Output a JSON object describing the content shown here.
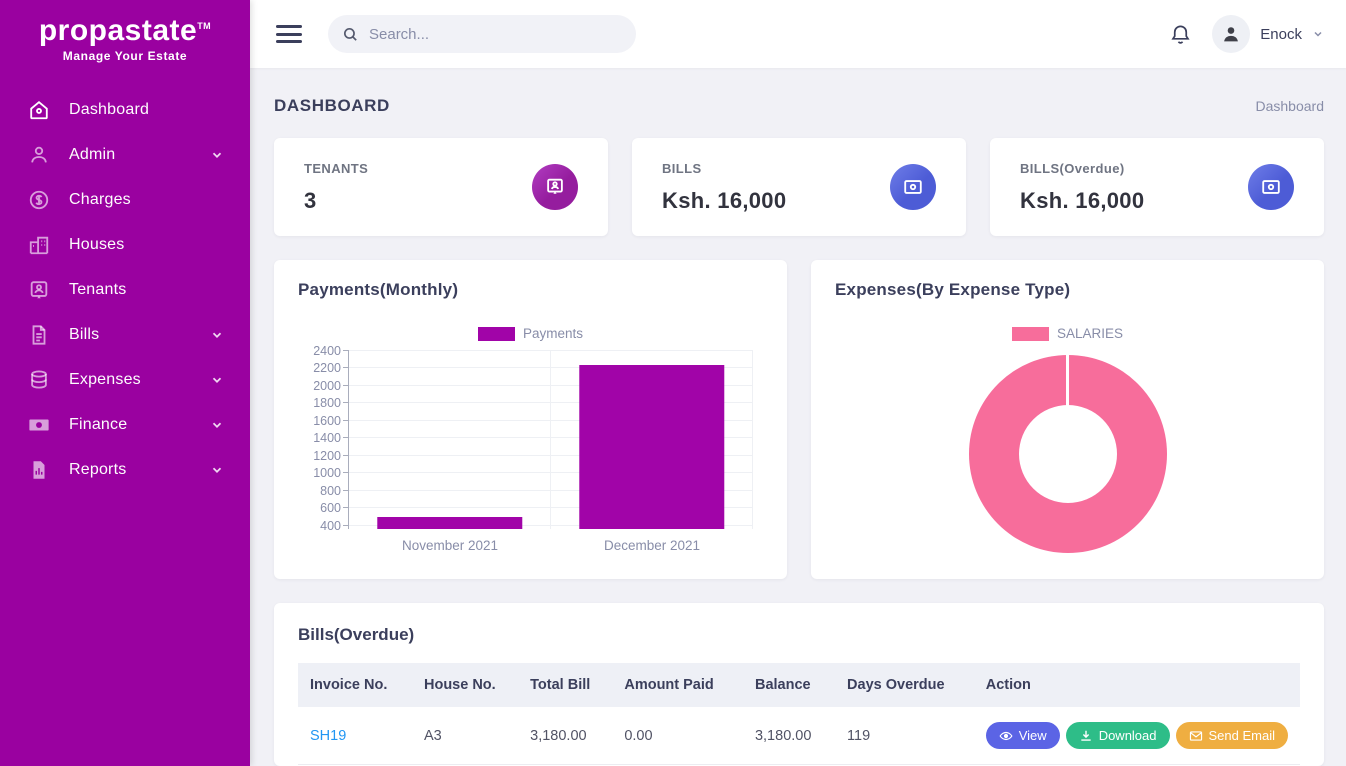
{
  "colors": {
    "sidebar-bg": "#9a01a0",
    "chart-purple": "#a104a8",
    "donut-pink": "#f76d9b",
    "stat-purple": "#951d9e",
    "stat-blue": "#4d5cd6",
    "link-blue": "#2196f3",
    "btn-view": "#5b64e5",
    "btn-download": "#2ebd88",
    "btn-email": "#efae41"
  },
  "sidebar": {
    "logo": "propastate",
    "logo_tm": "TM",
    "tagline": "Manage Your Estate",
    "items": [
      {
        "label": "Dashboard",
        "icon": "home-icon",
        "expandable": false,
        "active": true
      },
      {
        "label": "Admin",
        "icon": "user-icon",
        "expandable": true,
        "active": false
      },
      {
        "label": "Charges",
        "icon": "dollar-circle-icon",
        "expandable": false,
        "active": false
      },
      {
        "label": "Houses",
        "icon": "buildings-icon",
        "expandable": false,
        "active": false
      },
      {
        "label": "Tenants",
        "icon": "user-card-icon",
        "expandable": false,
        "active": false
      },
      {
        "label": "Bills",
        "icon": "file-icon",
        "expandable": true,
        "active": false
      },
      {
        "label": "Expenses",
        "icon": "database-icon",
        "expandable": true,
        "active": false
      },
      {
        "label": "Finance",
        "icon": "money-icon",
        "expandable": true,
        "active": false
      },
      {
        "label": "Reports",
        "icon": "report-icon",
        "expandable": true,
        "active": false
      }
    ]
  },
  "topbar": {
    "search_placeholder": "Search...",
    "username": "Enock"
  },
  "page": {
    "title": "DASHBOARD",
    "breadcrumb": "Dashboard"
  },
  "stats": [
    {
      "label": "TENANTS",
      "value": "3",
      "icon": "tenant-badge-icon"
    },
    {
      "label": "BILLS",
      "value": "Ksh. 16,000",
      "icon": "money-bill-icon"
    },
    {
      "label": "BILLS(Overdue)",
      "value": "Ksh. 16,000",
      "icon": "money-bill-icon"
    }
  ],
  "chart_data": [
    {
      "type": "bar",
      "title": "Payments(Monthly)",
      "legend": "Payments",
      "color": "#a104a8",
      "x": [
        "November 2021",
        "December 2021"
      ],
      "values": [
        500,
        2240
      ],
      "ylim": [
        360,
        2400
      ],
      "yticks": [
        400,
        600,
        800,
        1000,
        1200,
        1400,
        1600,
        1800,
        2000,
        2200,
        2400
      ],
      "grid": true,
      "legend_position": "top"
    },
    {
      "type": "pie",
      "title": "Expenses(By Expense Type)",
      "legend": "SALARIES",
      "color": "#f76d9b",
      "labels": [
        "SALARIES"
      ],
      "values": [
        100
      ],
      "cutout": "50%",
      "legend_position": "top"
    }
  ],
  "bills_table": {
    "title": "Bills(Overdue)",
    "columns": [
      "Invoice No.",
      "House No.",
      "Total Bill",
      "Amount Paid",
      "Balance",
      "Days Overdue",
      "Action"
    ],
    "rows": [
      {
        "invoice": "SH19",
        "house": "A3",
        "total": "3,180.00",
        "paid": "0.00",
        "balance": "3,180.00",
        "days": "119"
      }
    ],
    "actions": {
      "view": "View",
      "download": "Download",
      "send_email": "Send Email"
    }
  }
}
